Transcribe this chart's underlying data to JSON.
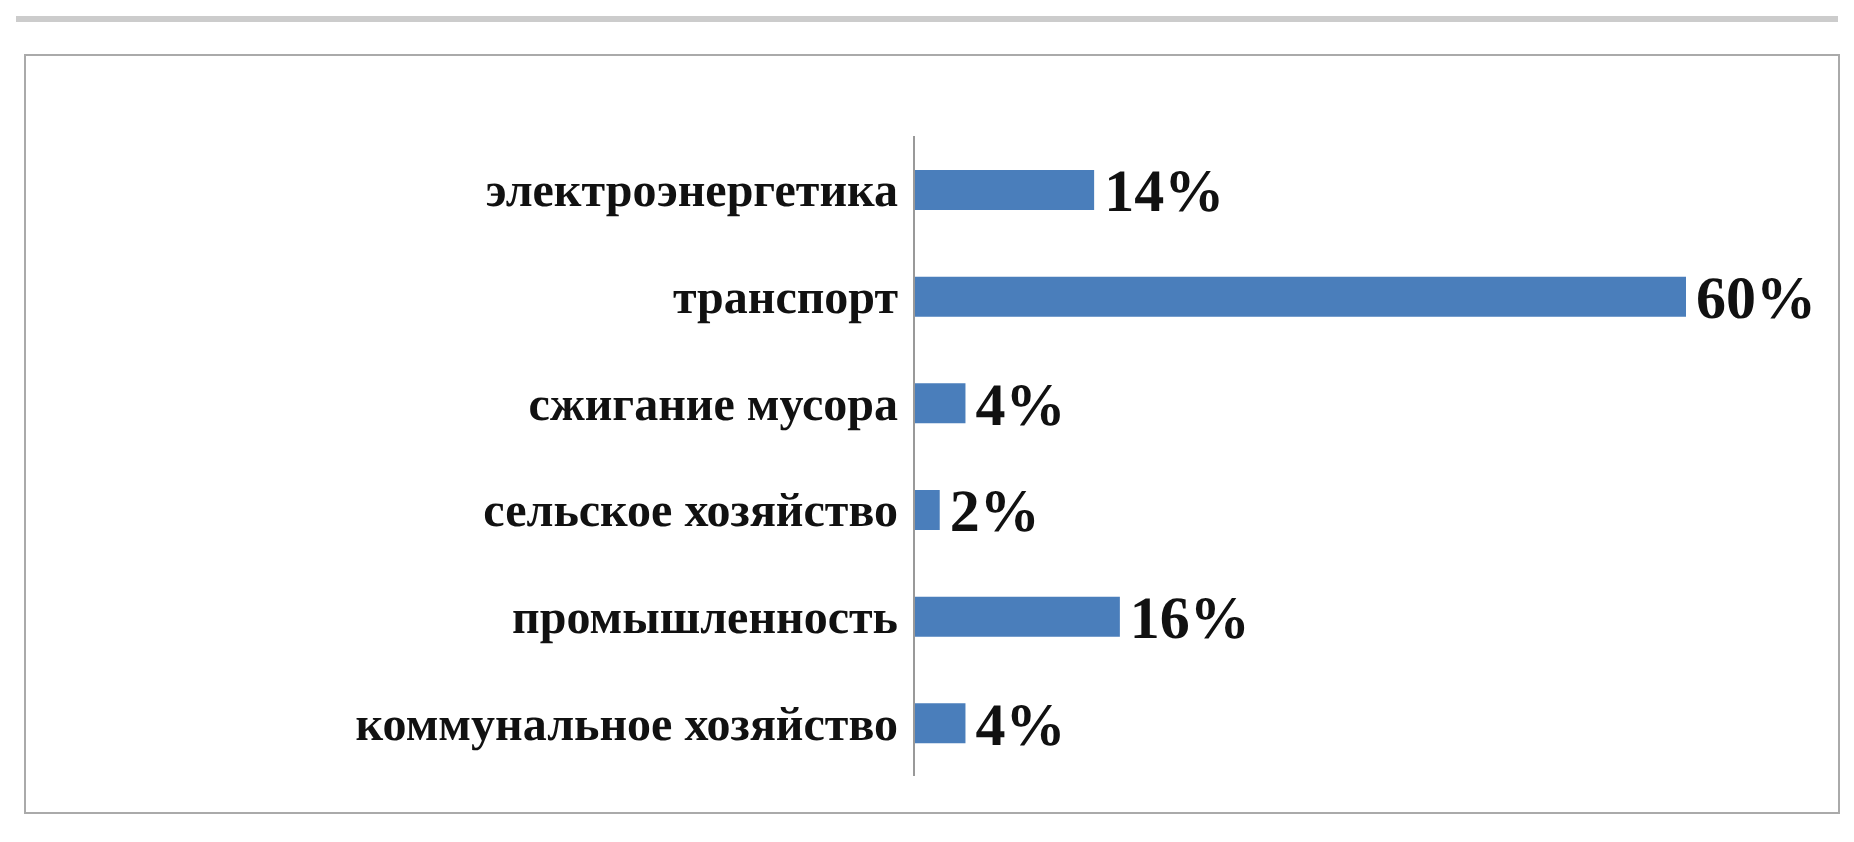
{
  "chart_data": {
    "type": "bar",
    "orientation": "horizontal",
    "categories": [
      "электроэнергетика",
      "транспорт",
      "сжигание мусора",
      "сельское хозяйство",
      "промышленность",
      "коммунальное хозяйство"
    ],
    "values": [
      14,
      60,
      4,
      2,
      16,
      4
    ],
    "value_labels": [
      "14%",
      "60%",
      "4%",
      "2%",
      "16%",
      "4%"
    ],
    "color": "#4a7ebb",
    "grid": false,
    "legend": false
  }
}
